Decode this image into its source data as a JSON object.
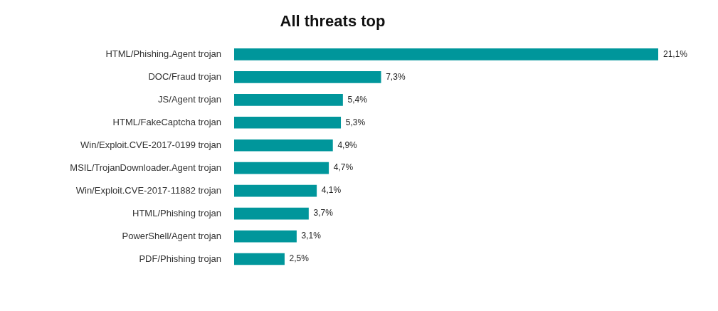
{
  "chart_data": {
    "type": "bar",
    "orientation": "horizontal",
    "title": "All threats top",
    "categories": [
      "HTML/Phishing.Agent trojan",
      "DOC/Fraud trojan",
      "JS/Agent trojan",
      "HTML/FakeCaptcha trojan",
      "Win/Exploit.CVE-2017-0199 trojan",
      "MSIL/TrojanDownloader.Agent trojan",
      "Win/Exploit.CVE-2017-11882 trojan",
      "HTML/Phishing trojan",
      "PowerShell/Agent trojan",
      "PDF/Phishing trojan"
    ],
    "values": [
      21.1,
      7.3,
      5.4,
      5.3,
      4.9,
      4.7,
      4.1,
      3.7,
      3.1,
      2.5
    ],
    "value_labels": [
      "21,1%",
      "7,3%",
      "5,4%",
      "5,3%",
      "4,9%",
      "4,7%",
      "4,1%",
      "3,7%",
      "3,1%",
      "2,5%"
    ],
    "color": "#00969b",
    "legend": false
  }
}
